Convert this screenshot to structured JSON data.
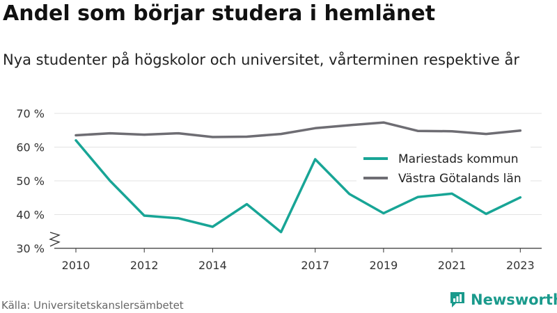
{
  "title": "Andel som börjar studera i hemlänet",
  "subtitle": "Nya studenter på högskolor och universitet, vårterminen respektive år",
  "source": "Källa: Universitetskanslersämbetet",
  "brand": {
    "name": "Newsworthy",
    "icon": "newsworthy-logo-icon",
    "color": "#1a9a8c"
  },
  "chart_data": {
    "type": "line",
    "x": [
      2010,
      2011,
      2012,
      2013,
      2014,
      2015,
      2016,
      2017,
      2018,
      2019,
      2020,
      2021,
      2022,
      2023
    ],
    "x_tick_labels": [
      "2010",
      "2012",
      "2014",
      "2017",
      "2019",
      "2021",
      "2023"
    ],
    "y_tick_labels": [
      "30 %",
      "40 %",
      "50 %",
      "60 %",
      "70 %"
    ],
    "ylim": [
      30,
      70
    ],
    "y_axis_break": true,
    "grid": true,
    "legend_position": "top-right",
    "series": [
      {
        "name": "Mariestads kommun",
        "color": "#18a596",
        "values": [
          62,
          50,
          39.7,
          38.9,
          36.4,
          43.1,
          34.8,
          56.4,
          46.1,
          40.4,
          45.2,
          46.2,
          40.2,
          45.1
        ]
      },
      {
        "name": "Västra Götalands län",
        "color": "#6e6d73",
        "values": [
          63.5,
          64.1,
          63.7,
          64.1,
          63,
          63.1,
          63.9,
          65.6,
          66.5,
          67.3,
          64.8,
          64.7,
          63.9,
          64.9
        ]
      }
    ]
  }
}
